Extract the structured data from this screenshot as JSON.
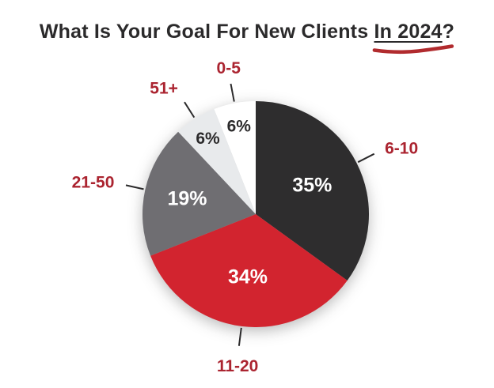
{
  "page": {
    "background": "#ffffff"
  },
  "title": {
    "main": "What Is Your Goal For New Clients ",
    "emphasis": "In 2024",
    "suffix": "?",
    "color": "#2b2a2b",
    "swoosh_color": "#b12b2e"
  },
  "chart_data": {
    "type": "pie",
    "title": "What Is Your Goal For New Clients In 2024?",
    "start_angle_deg": -21.6,
    "clockwise": true,
    "legend_position": "outside-labels",
    "category_label_color": "#ab2430",
    "leader_line_color": "#2b2a2b",
    "segments": [
      {
        "label": "0-5",
        "value": 6,
        "display": "6%",
        "color": "#ffffff",
        "value_text_color": "#2b2a2b"
      },
      {
        "label": "6-10",
        "value": 35,
        "display": "35%",
        "color": "#2e2d2e",
        "value_text_color": "#ffffff"
      },
      {
        "label": "11-20",
        "value": 34,
        "display": "34%",
        "color": "#d2242f",
        "value_text_color": "#ffffff"
      },
      {
        "label": "21-50",
        "value": 19,
        "display": "19%",
        "color": "#6f6e72",
        "value_text_color": "#ffffff"
      },
      {
        "label": "51+",
        "value": 6,
        "display": "6%",
        "color": "#e8eaec",
        "value_text_color": "#2b2a2b"
      }
    ]
  }
}
